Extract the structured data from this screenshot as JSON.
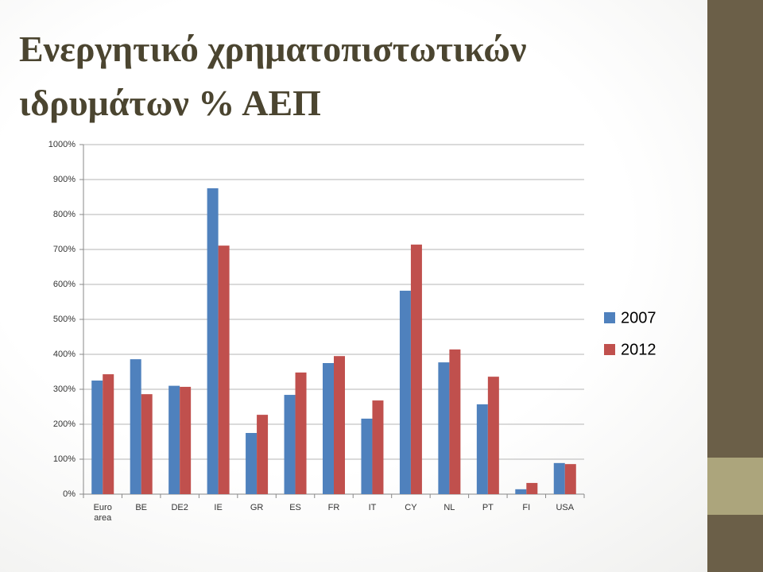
{
  "chart_data": {
    "type": "bar",
    "title": "Ενεργητικό χρηματοπιστωτικών ιδρυμάτων % ΑΕΠ",
    "categories": [
      "Euro area",
      "BE",
      "DE2",
      "IE",
      "GR",
      "ES",
      "FR",
      "IT",
      "CY",
      "NL",
      "PT",
      "FI",
      "USA"
    ],
    "series": [
      {
        "name": "2007",
        "color": "#4f81bd",
        "values": [
          325,
          386,
          310,
          875,
          175,
          284,
          375,
          216,
          582,
          377,
          257,
          14,
          89
        ]
      },
      {
        "name": "2012",
        "color": "#c0504d",
        "values": [
          343,
          286,
          307,
          711,
          227,
          348,
          395,
          268,
          714,
          414,
          336,
          32,
          86
        ]
      }
    ],
    "ylim": [
      0,
      1000
    ],
    "yticks": [
      {
        "value": 0,
        "label": "0%"
      },
      {
        "value": 100,
        "label": "100%"
      },
      {
        "value": 200,
        "label": "200%"
      },
      {
        "value": 300,
        "label": "300%"
      },
      {
        "value": 400,
        "label": "400%"
      },
      {
        "value": 500,
        "label": "500%"
      },
      {
        "value": 600,
        "label": "600%"
      },
      {
        "value": 700,
        "label": "700%"
      },
      {
        "value": 800,
        "label": "800%"
      },
      {
        "value": 900,
        "label": "900%"
      },
      {
        "value": 1000,
        "label": "1000%"
      }
    ],
    "grid": true,
    "legend": "right"
  }
}
